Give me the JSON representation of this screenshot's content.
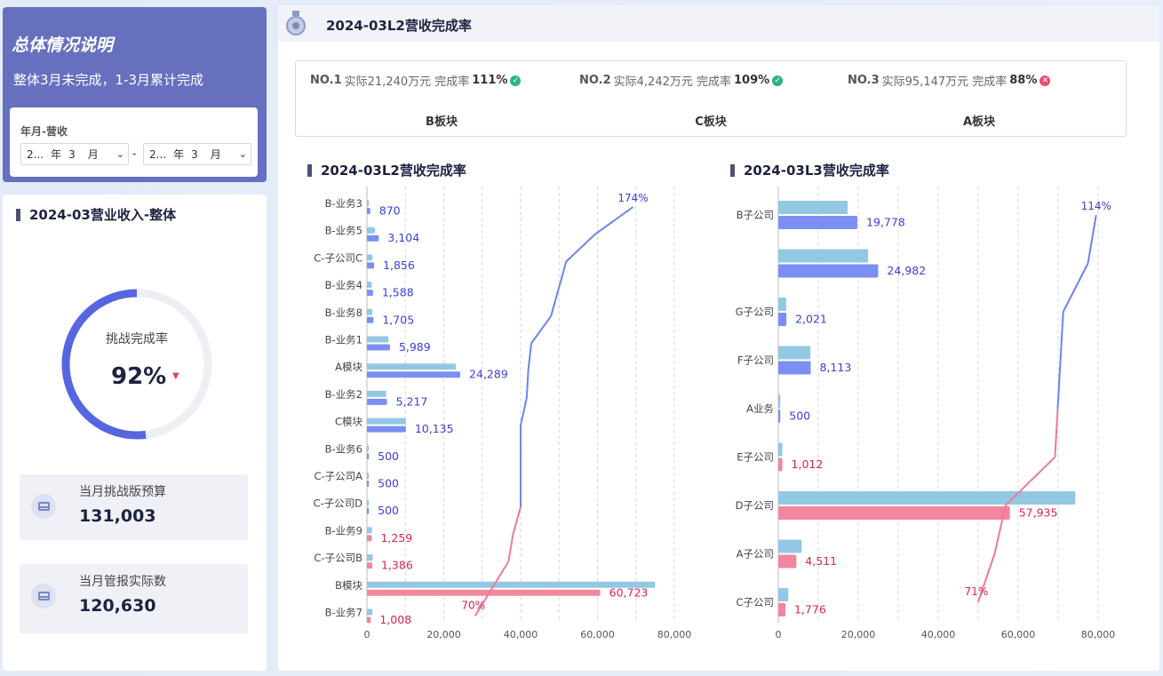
{
  "summary": {
    "title": "总体情况说明",
    "subtitle": "整体3月未完成，1-3月累计完成",
    "filter": {
      "label": "年月-营收",
      "start": {
        "year": "2...",
        "year_unit": "年",
        "month": "3",
        "month_unit": "月"
      },
      "separator": "-",
      "end": {
        "year": "2...",
        "year_unit": "年",
        "month": "3",
        "month_unit": "月"
      }
    }
  },
  "overall": {
    "title": "2024-03营业收入-整体",
    "gauge_label": "挑战完成率",
    "gauge_value": "92%",
    "gauge_fill": 0.52,
    "trend": "down",
    "kpis": [
      {
        "label": "当月挑战版预算",
        "value": "131,003"
      },
      {
        "label": "当月管报实际数",
        "value": "120,630"
      }
    ]
  },
  "main": {
    "title": "2024-03L2营收完成率",
    "ranking": [
      {
        "rank": "NO.1",
        "actual_label": "实际21,240万元 完成率",
        "rate": "111%",
        "status": "ok",
        "segment": "B板块"
      },
      {
        "rank": "NO.2",
        "actual_label": "实际4,242万元 完成率",
        "rate": "109%",
        "status": "ok",
        "segment": "C板块"
      },
      {
        "rank": "NO.3",
        "actual_label": "实际95,147万元 完成率",
        "rate": "88%",
        "status": "fail",
        "segment": "A板块"
      }
    ]
  },
  "colors": {
    "budget": "#93c8e3",
    "actual_ok": "#7b8ff3",
    "actual_bad": "#f2869e",
    "label_ok": "#3b3fd6",
    "label_bad": "#d6264f",
    "line_ok": "#6b84f0",
    "line_bad": "#f07a98"
  },
  "chart_data": [
    {
      "type": "bar",
      "title": "2024-03L2营收完成率",
      "xlim": [
        0,
        80000
      ],
      "xticks": [
        "0",
        "20,000",
        "40,000",
        "60,000",
        "80,000"
      ],
      "categories": [
        "B-业务3",
        "B-业务5",
        "C-子公司C",
        "B-业务4",
        "B-业务8",
        "B-业务1",
        "A模块",
        "B-业务2",
        "C模块",
        "B-业务6",
        "C-子公司A",
        "C-子公司D",
        "B-业务9",
        "C-子公司B",
        "B模块",
        "B-业务7"
      ],
      "series": [
        {
          "name": "预算",
          "values": [
            500,
            2083,
            1428,
            1270,
            1421,
            5597,
            23132,
            5016,
            10135,
            500,
            500,
            500,
            1325,
            1507,
            75000,
            1440
          ]
        },
        {
          "name": "实际",
          "values": [
            870,
            3104,
            1856,
            1588,
            1705,
            5989,
            24289,
            5217,
            10135,
            500,
            500,
            500,
            1259,
            1386,
            60723,
            1008
          ],
          "labels": [
            "870",
            "3,104",
            "1,856",
            "1,588",
            "1,705",
            "5,989",
            "24,289",
            "5,217",
            "10,135",
            "500",
            "500",
            "500",
            "1,259",
            "1,386",
            "60,723",
            "1,008"
          ]
        },
        {
          "name": "完成率",
          "values": [
            174,
            149,
            130,
            125,
            120,
            107,
            105,
            104,
            100,
            100,
            100,
            100,
            95,
            92,
            81,
            70
          ],
          "max_label": "174%",
          "min_label": "70%"
        }
      ]
    },
    {
      "type": "bar",
      "title": "2024-03L3营收完成率",
      "xlim": [
        0,
        80000
      ],
      "xticks": [
        "0",
        "20,000",
        "40,000",
        "60,000",
        "80,000"
      ],
      "categories": [
        "B子公司",
        "",
        "G子公司",
        "F子公司",
        "A业务",
        "E子公司",
        "D子公司",
        "A子公司",
        "C子公司"
      ],
      "series": [
        {
          "name": "预算",
          "values": [
            17350,
            22500,
            1980,
            8030,
            500,
            1022,
            74300,
            5860,
            2500
          ]
        },
        {
          "name": "实际",
          "values": [
            19778,
            24982,
            2021,
            8113,
            500,
            1012,
            57935,
            4511,
            1776
          ],
          "labels": [
            "19,778",
            "24,982",
            "2,021",
            "8,113",
            "500",
            "1,012",
            "57,935",
            "4,511",
            "1,776"
          ]
        },
        {
          "name": "完成率",
          "values": [
            114,
            111,
            102,
            101,
            100,
            99,
            81,
            77,
            71
          ],
          "max_label": "114%",
          "min_label": "71%"
        }
      ]
    }
  ]
}
